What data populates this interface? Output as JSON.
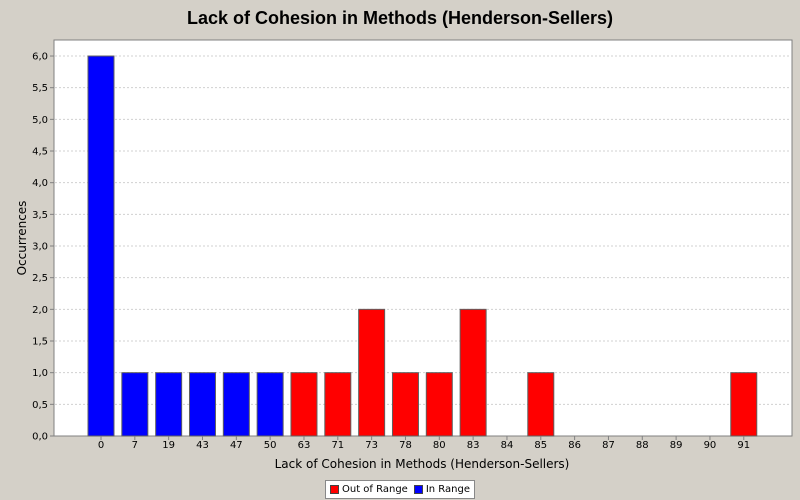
{
  "chart_data": {
    "type": "bar",
    "title": "Lack of Cohesion in Methods (Henderson-Sellers)",
    "xlabel": "Lack of Cohesion in Methods (Henderson-Sellers)",
    "ylabel": "Occurrences",
    "categories": [
      "0",
      "7",
      "19",
      "43",
      "47",
      "50",
      "63",
      "71",
      "73",
      "78",
      "80",
      "83",
      "84",
      "85",
      "86",
      "87",
      "88",
      "89",
      "90",
      "91"
    ],
    "values": [
      6,
      1,
      1,
      1,
      1,
      1,
      1,
      1,
      2,
      1,
      1,
      2,
      0,
      1,
      0,
      0,
      0,
      0,
      0,
      1
    ],
    "bar_series": [
      "In Range",
      "In Range",
      "In Range",
      "In Range",
      "In Range",
      "In Range",
      "Out of Range",
      "Out of Range",
      "Out of Range",
      "Out of Range",
      "Out of Range",
      "Out of Range",
      "Out of Range",
      "Out of Range",
      "Out of Range",
      "Out of Range",
      "Out of Range",
      "Out of Range",
      "Out of Range",
      "Out of Range"
    ],
    "ylim": [
      0,
      6
    ],
    "yticks": [
      "0,0",
      "0,5",
      "1,0",
      "1,5",
      "2,0",
      "2,5",
      "3,0",
      "3,5",
      "4,0",
      "4,5",
      "5,0",
      "5,5",
      "6,0"
    ],
    "grid": true,
    "legend_position": "bottom",
    "series": [
      {
        "name": "Out of Range",
        "color": "#ff0000"
      },
      {
        "name": "In Range",
        "color": "#0000ff"
      }
    ]
  }
}
